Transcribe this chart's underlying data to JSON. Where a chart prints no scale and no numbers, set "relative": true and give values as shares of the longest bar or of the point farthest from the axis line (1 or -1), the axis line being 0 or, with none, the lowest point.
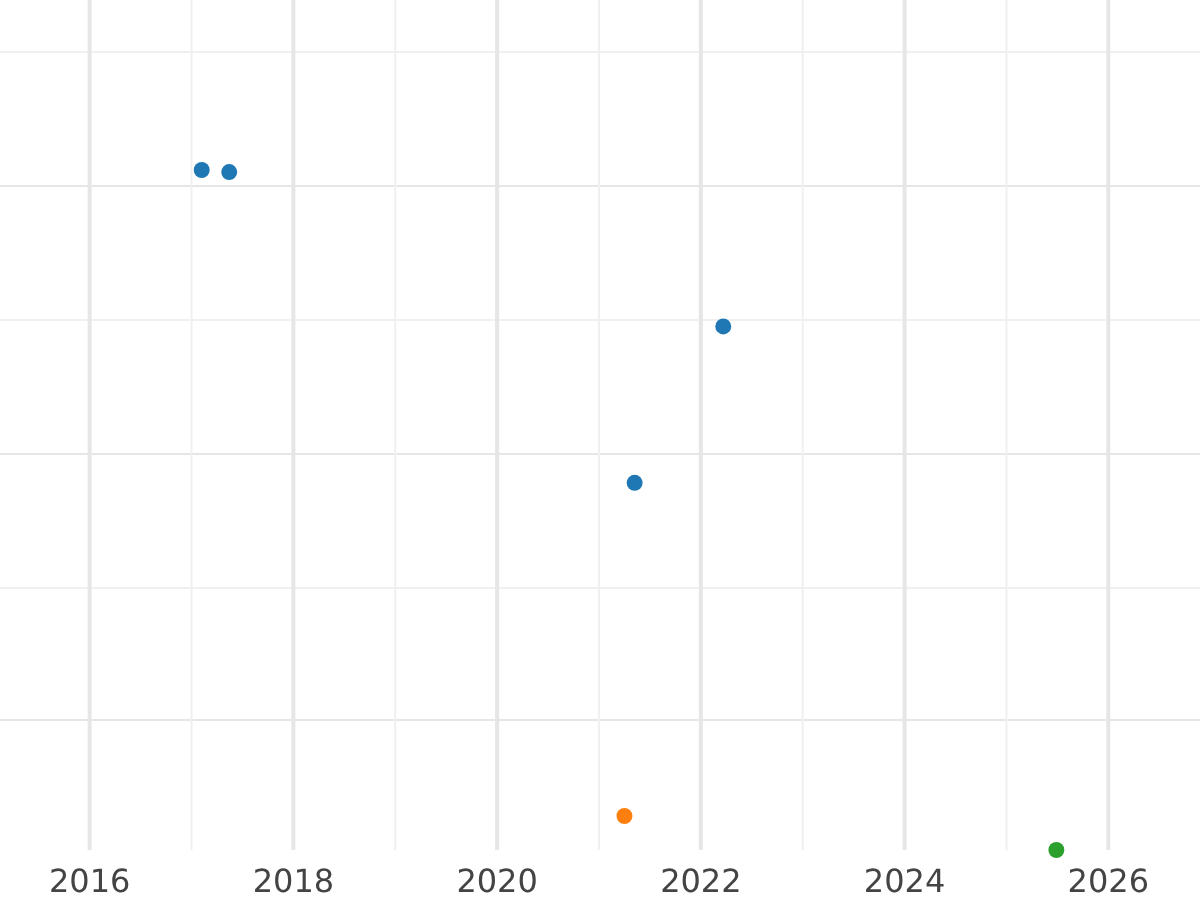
{
  "chart_data": {
    "type": "scatter",
    "relative": true,
    "grid": true,
    "marker": "circle",
    "xlim": [
      2015.12,
      2026.9
    ],
    "xticks": [
      2016,
      {
        "value": 2017,
        "label": null
      },
      2018,
      {
        "value": 2019,
        "label": null
      },
      2020,
      {
        "value": 2021,
        "label": null
      },
      2022,
      {
        "value": 2023,
        "label": null
      },
      2024,
      {
        "value": 2025,
        "label": null
      },
      2026
    ],
    "series": [
      {
        "color": "#1f77b4",
        "x": [
          2017.1,
          2017.37,
          2022.22,
          2021.35
        ],
        "values": [
          1,
          0.997,
          0.77,
          0.54
        ]
      },
      {
        "color": "#ff7f0e",
        "x": [
          2021.25
        ],
        "values": [
          0.05
        ]
      },
      {
        "color": "#2ca02c",
        "x": [
          2025.49
        ],
        "values": [
          0
        ]
      }
    ]
  }
}
